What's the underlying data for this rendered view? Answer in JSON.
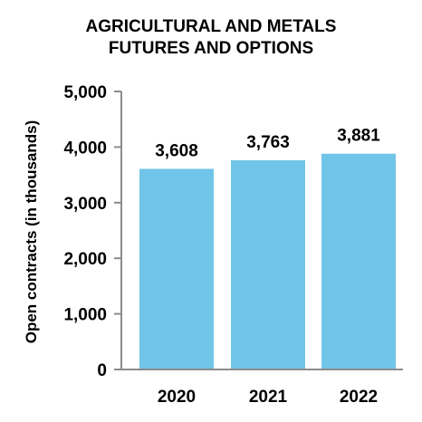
{
  "chart_data": {
    "type": "bar",
    "title_lines": [
      "AGRICULTURAL AND METALS",
      "FUTURES AND OPTIONS"
    ],
    "xlabel": "",
    "ylabel": "Open contracts (in thousands)",
    "categories": [
      "2020",
      "2021",
      "2022"
    ],
    "values": [
      3608,
      3763,
      3881
    ],
    "value_labels": [
      "3,608",
      "3,763",
      "3,881"
    ],
    "ylim": [
      0,
      5000
    ],
    "yticks": [
      0,
      1000,
      2000,
      3000,
      4000,
      5000
    ],
    "ytick_labels": [
      "0",
      "1,000",
      "2,000",
      "3,000",
      "4,000",
      "5,000"
    ],
    "grid": false,
    "bar_color": "#71c5e8",
    "axis_color": "#8c8c8c"
  }
}
